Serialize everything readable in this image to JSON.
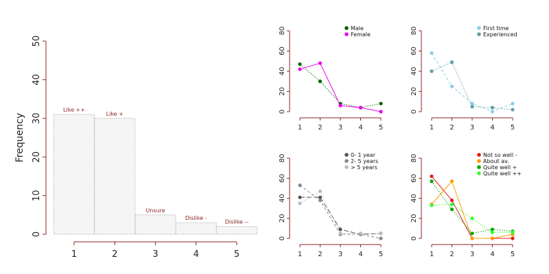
{
  "chart_data": [
    {
      "type": "bar",
      "ylabel": "Frequency",
      "categories": [
        "1",
        "2",
        "3",
        "4",
        "5"
      ],
      "values": [
        31,
        30,
        5,
        3,
        2
      ],
      "bar_labels": [
        "Like ++",
        "Like +",
        "Unsure",
        "Dislike -",
        "Dislike --"
      ],
      "ylim": [
        0,
        50
      ],
      "yticks": [
        0,
        10,
        20,
        30,
        40,
        50
      ],
      "grid": false,
      "bar_fill": "#f5f5f5",
      "bar_stroke": "#bbbbbb",
      "label_color": "#8b2323"
    },
    {
      "type": "line",
      "x": [
        1,
        2,
        3,
        4,
        5
      ],
      "ylim": [
        0,
        80
      ],
      "yticks": [
        0,
        20,
        40,
        60,
        80
      ],
      "legend_position": "top-right",
      "series": [
        {
          "name": "Male",
          "values": [
            47,
            30,
            8,
            4,
            8
          ],
          "color": "#006400",
          "dash": "dotted"
        },
        {
          "name": "Female",
          "values": [
            42,
            48,
            6,
            4,
            0
          ],
          "color": "#ee00ee",
          "dash": "solid"
        }
      ]
    },
    {
      "type": "line",
      "x": [
        1,
        2,
        3,
        4,
        5
      ],
      "ylim": [
        0,
        80
      ],
      "yticks": [
        0,
        20,
        40,
        60,
        80
      ],
      "legend_position": "top-right",
      "series": [
        {
          "name": "First time",
          "values": [
            58,
            25,
            8,
            0,
            8
          ],
          "color": "#87ceeb",
          "dash": "dashed"
        },
        {
          "name": "Experienced",
          "values": [
            40,
            49,
            5,
            4,
            2
          ],
          "color": "#5f9ea0",
          "dash": "dotted"
        }
      ]
    },
    {
      "type": "line",
      "x": [
        1,
        2,
        3,
        4,
        5
      ],
      "ylim": [
        0,
        80
      ],
      "yticks": [
        0,
        20,
        40,
        60,
        80
      ],
      "legend_position": "top-right",
      "series": [
        {
          "name": "0- 1 year",
          "values": [
            41,
            41,
            9,
            4,
            5
          ],
          "color": "#555555",
          "dash": "longdash"
        },
        {
          "name": "2- 5 years",
          "values": [
            53,
            38,
            4,
            4,
            0
          ],
          "color": "#888888",
          "dash": "dashed"
        },
        {
          "name": "> 5 years",
          "values": [
            35,
            47,
            5,
            5,
            5
          ],
          "color": "#bbbbbb",
          "dash": "dotted"
        }
      ]
    },
    {
      "type": "line",
      "x": [
        1,
        2,
        3,
        4,
        5
      ],
      "ylim": [
        0,
        80
      ],
      "yticks": [
        0,
        20,
        40,
        60,
        80
      ],
      "legend_position": "top-right",
      "series": [
        {
          "name": "Not so well -",
          "values": [
            62,
            38,
            0,
            0,
            0
          ],
          "color": "#e31a1c",
          "dash": "solid"
        },
        {
          "name": "About av.",
          "values": [
            34,
            57,
            0,
            0,
            4
          ],
          "color": "#ff9900",
          "dash": "solid"
        },
        {
          "name": "Quite well +",
          "values": [
            57,
            29,
            5,
            9,
            7
          ],
          "color": "#00aa00",
          "dash": "dotted"
        },
        {
          "name": "Quite well ++",
          "values": [
            33,
            34,
            20,
            6,
            6
          ],
          "color": "#33ff33",
          "dash": "dotted"
        }
      ]
    }
  ]
}
